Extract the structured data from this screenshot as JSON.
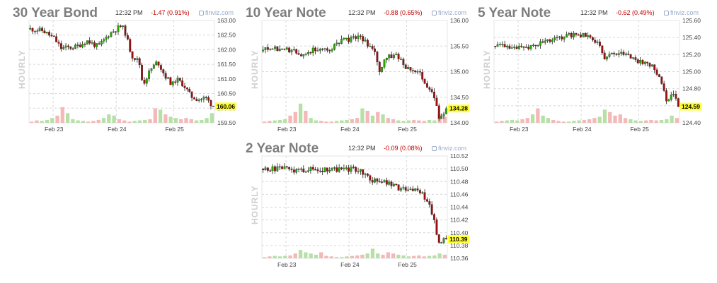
{
  "chart_data": [
    {
      "type": "candlestick",
      "title": "30 Year Bond",
      "time": "12:32 PM",
      "change": "-1.47 (0.91%)",
      "source": "finviz.com",
      "ylabel": "HOURLY",
      "ylim": [
        159.5,
        163.0
      ],
      "yticks": [
        "163.00",
        "162.50",
        "162.00",
        "161.50",
        "161.00",
        "160.50",
        "160.00",
        "159.50"
      ],
      "yticks_values": [
        163.0,
        162.5,
        162.0,
        161.5,
        161.0,
        160.5,
        160.0,
        159.5
      ],
      "xticks": [
        "Feb 23",
        "Feb 24",
        "Feb 25"
      ],
      "last_price": "160.06",
      "last_value": 160.06,
      "start_value": 162.7,
      "anchors": [
        [
          0,
          162.72
        ],
        [
          0.08,
          162.65
        ],
        [
          0.14,
          162.4
        ],
        [
          0.18,
          162.05
        ],
        [
          0.26,
          162.1
        ],
        [
          0.32,
          162.3
        ],
        [
          0.38,
          162.1
        ],
        [
          0.44,
          162.55
        ],
        [
          0.5,
          162.8
        ],
        [
          0.52,
          162.7
        ],
        [
          0.56,
          161.8
        ],
        [
          0.6,
          161.6
        ],
        [
          0.62,
          160.8
        ],
        [
          0.66,
          161.3
        ],
        [
          0.7,
          161.6
        ],
        [
          0.74,
          161.1
        ],
        [
          0.78,
          160.8
        ],
        [
          0.8,
          161.0
        ],
        [
          0.84,
          160.8
        ],
        [
          0.88,
          160.4
        ],
        [
          0.92,
          160.3
        ],
        [
          0.96,
          160.35
        ],
        [
          1,
          160.06
        ]
      ],
      "volume": [
        0.05,
        0.1,
        0.08,
        0.12,
        0.2,
        0.3,
        0.65,
        0.4,
        0.15,
        0.1,
        0.08,
        0.05,
        0.08,
        0.12,
        0.2,
        0.35,
        0.3,
        0.15,
        0.1,
        0.05,
        0.08,
        0.1,
        0.12,
        0.15,
        0.6,
        0.55,
        0.35,
        0.25,
        0.2,
        0.15,
        0.2,
        0.15,
        0.1,
        0.12,
        0.2,
        0.4
      ]
    },
    {
      "type": "candlestick",
      "title": "10 Year Note",
      "time": "12:32 PM",
      "change": "-0.88 (0.65%)",
      "source": "finviz.com",
      "ylabel": "HOURLY",
      "ylim": [
        134.0,
        136.0
      ],
      "yticks": [
        "136.00",
        "135.50",
        "135.00",
        "134.50",
        "134.00"
      ],
      "yticks_values": [
        136.0,
        135.5,
        135.0,
        134.5,
        134.0
      ],
      "xticks": [
        "Feb 23",
        "Feb 24",
        "Feb 25"
      ],
      "last_price": "134.28",
      "last_value": 134.28,
      "start_value": 135.4,
      "anchors": [
        [
          0,
          135.42
        ],
        [
          0.12,
          135.45
        ],
        [
          0.22,
          135.35
        ],
        [
          0.3,
          135.45
        ],
        [
          0.36,
          135.42
        ],
        [
          0.44,
          135.6
        ],
        [
          0.5,
          135.65
        ],
        [
          0.54,
          135.68
        ],
        [
          0.58,
          135.5
        ],
        [
          0.62,
          135.4
        ],
        [
          0.64,
          134.95
        ],
        [
          0.68,
          135.3
        ],
        [
          0.74,
          135.3
        ],
        [
          0.78,
          135.1
        ],
        [
          0.82,
          135.05
        ],
        [
          0.86,
          134.95
        ],
        [
          0.9,
          134.7
        ],
        [
          0.94,
          134.45
        ],
        [
          0.96,
          134.1
        ],
        [
          1,
          134.28
        ]
      ],
      "volume": [
        0.05,
        0.08,
        0.1,
        0.12,
        0.15,
        0.3,
        0.45,
        0.8,
        0.5,
        0.2,
        0.1,
        0.08,
        0.05,
        0.05,
        0.08,
        0.1,
        0.12,
        0.15,
        0.2,
        0.6,
        0.5,
        0.3,
        0.45,
        0.35,
        0.2,
        0.15,
        0.1,
        0.08,
        0.1,
        0.12,
        0.1,
        0.08,
        0.12,
        0.1,
        0.35,
        0.25
      ]
    },
    {
      "type": "candlestick",
      "title": "5 Year Note",
      "time": "12:32 PM",
      "change": "-0.62 (0.49%)",
      "source": "finviz.com",
      "ylabel": "HOURLY",
      "ylim": [
        124.4,
        125.6
      ],
      "yticks": [
        "125.60",
        "125.40",
        "125.20",
        "125.00",
        "124.80",
        "124.60",
        "124.40"
      ],
      "yticks_values": [
        125.6,
        125.4,
        125.2,
        125.0,
        124.8,
        124.6,
        124.4
      ],
      "xticks": [
        "Feb 23",
        "Feb 24",
        "Feb 25"
      ],
      "last_price": "124.59",
      "last_value": 124.59,
      "start_value": 125.3,
      "anchors": [
        [
          0,
          125.3
        ],
        [
          0.1,
          125.3
        ],
        [
          0.16,
          125.27
        ],
        [
          0.22,
          125.32
        ],
        [
          0.28,
          125.35
        ],
        [
          0.34,
          125.38
        ],
        [
          0.4,
          125.42
        ],
        [
          0.46,
          125.44
        ],
        [
          0.5,
          125.42
        ],
        [
          0.54,
          125.38
        ],
        [
          0.58,
          125.3
        ],
        [
          0.6,
          125.12
        ],
        [
          0.62,
          125.22
        ],
        [
          0.68,
          125.2
        ],
        [
          0.72,
          125.22
        ],
        [
          0.76,
          125.15
        ],
        [
          0.8,
          125.1
        ],
        [
          0.84,
          125.1
        ],
        [
          0.86,
          125.05
        ],
        [
          0.9,
          124.95
        ],
        [
          0.92,
          124.8
        ],
        [
          0.94,
          124.6
        ],
        [
          0.97,
          124.75
        ],
        [
          1,
          124.59
        ]
      ],
      "volume": [
        0.05,
        0.08,
        0.1,
        0.12,
        0.1,
        0.15,
        0.2,
        0.35,
        0.6,
        0.3,
        0.2,
        0.12,
        0.08,
        0.05,
        0.05,
        0.08,
        0.1,
        0.12,
        0.15,
        0.2,
        0.25,
        0.55,
        0.45,
        0.3,
        0.35,
        0.2,
        0.15,
        0.1,
        0.08,
        0.1,
        0.12,
        0.1,
        0.12,
        0.15,
        0.3,
        0.2
      ]
    },
    {
      "type": "candlestick",
      "title": "2 Year Note",
      "time": "12:32 PM",
      "change": "-0.09 (0.08%)",
      "source": "finviz.com",
      "ylabel": "HOURLY",
      "ylim": [
        110.36,
        110.52
      ],
      "yticks": [
        "110.52",
        "110.50",
        "110.48",
        "110.46",
        "110.44",
        "110.42",
        "110.40",
        "110.38",
        "110.36"
      ],
      "yticks_values": [
        110.52,
        110.5,
        110.48,
        110.46,
        110.44,
        110.42,
        110.4,
        110.38,
        110.36
      ],
      "xticks": [
        "Feb 23",
        "Feb 24",
        "Feb 25"
      ],
      "last_price": "110.39",
      "last_value": 110.39,
      "start_value": 110.5,
      "anchors": [
        [
          0,
          110.5
        ],
        [
          0.12,
          110.5
        ],
        [
          0.2,
          110.497
        ],
        [
          0.26,
          110.5
        ],
        [
          0.32,
          110.497
        ],
        [
          0.38,
          110.5
        ],
        [
          0.44,
          110.498
        ],
        [
          0.5,
          110.5
        ],
        [
          0.54,
          110.495
        ],
        [
          0.58,
          110.488
        ],
        [
          0.6,
          110.475
        ],
        [
          0.62,
          110.482
        ],
        [
          0.66,
          110.48
        ],
        [
          0.7,
          110.475
        ],
        [
          0.74,
          110.47
        ],
        [
          0.78,
          110.468
        ],
        [
          0.82,
          110.468
        ],
        [
          0.86,
          110.465
        ],
        [
          0.9,
          110.45
        ],
        [
          0.93,
          110.425
        ],
        [
          0.96,
          110.385
        ],
        [
          1,
          110.39
        ]
      ],
      "volume": [
        0.05,
        0.08,
        0.1,
        0.08,
        0.1,
        0.12,
        0.2,
        0.35,
        0.25,
        0.2,
        0.15,
        0.25,
        0.1,
        0.08,
        0.05,
        0.05,
        0.08,
        0.1,
        0.12,
        0.15,
        0.2,
        0.4,
        0.2,
        0.15,
        0.25,
        0.2,
        0.15,
        0.12,
        0.08,
        0.1,
        0.12,
        0.08,
        0.1,
        0.12,
        0.2,
        0.15
      ]
    }
  ],
  "colors": {
    "up": "#26a800",
    "down": "#9b1010",
    "vol_up": "#b6e0a6",
    "vol_down": "#f4b8b8",
    "grid": "#d6d6d6",
    "highlight": "#ffff33"
  }
}
